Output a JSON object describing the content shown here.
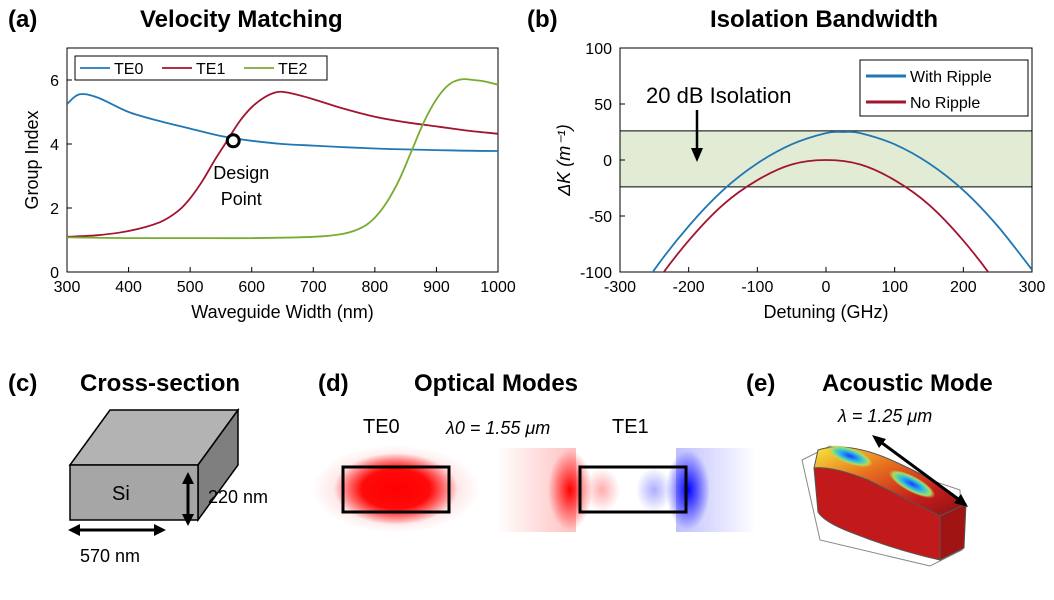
{
  "panels": {
    "a": {
      "label": "(a)",
      "title": "Velocity Matching"
    },
    "b": {
      "label": "(b)",
      "title": "Isolation Bandwidth"
    },
    "c": {
      "label": "(c)",
      "title": "Cross-section",
      "material": "Si",
      "height_label": "220 nm",
      "width_label": "570 nm"
    },
    "d": {
      "label": "(d)",
      "title": "Optical Modes",
      "mode_left": "TE0",
      "mode_right": "TE1",
      "wavelength_label": "λ0 = 1.55 μm"
    },
    "e": {
      "label": "(e)",
      "title": "Acoustic Mode",
      "wavelength_label": "λ = 1.25 μm"
    }
  },
  "chart_data": [
    {
      "type": "line",
      "title": "Velocity Matching",
      "xlabel": "Waveguide Width (nm)",
      "ylabel": "Group Index",
      "xlim": [
        300,
        1000
      ],
      "ylim": [
        0,
        7
      ],
      "xticks": [
        300,
        400,
        500,
        600,
        700,
        800,
        900,
        1000
      ],
      "yticks": [
        0,
        2,
        4,
        6
      ],
      "legend": "top-left",
      "annotation": {
        "text": "Design Point",
        "x": 570,
        "y": 4.1
      },
      "series": [
        {
          "name": "TE0",
          "color": "#1f77b4",
          "x": [
            300,
            320,
            350,
            400,
            450,
            500,
            550,
            600,
            650,
            700,
            750,
            800,
            850,
            900,
            950,
            1000
          ],
          "y": [
            5.25,
            5.55,
            5.45,
            5.0,
            4.72,
            4.48,
            4.25,
            4.1,
            4.0,
            3.95,
            3.9,
            3.86,
            3.83,
            3.81,
            3.79,
            3.78
          ]
        },
        {
          "name": "TE1",
          "color": "#a2142f",
          "x": [
            300,
            350,
            400,
            450,
            480,
            500,
            520,
            540,
            560,
            580,
            600,
            620,
            640,
            660,
            700,
            750,
            800,
            850,
            900,
            950,
            1000
          ],
          "y": [
            1.1,
            1.15,
            1.28,
            1.55,
            1.9,
            2.3,
            2.85,
            3.5,
            4.1,
            4.7,
            5.15,
            5.45,
            5.62,
            5.6,
            5.4,
            5.1,
            4.85,
            4.68,
            4.55,
            4.42,
            4.32
          ]
        },
        {
          "name": "TE2",
          "color": "#77ac30",
          "x": [
            300,
            400,
            500,
            600,
            700,
            750,
            780,
            800,
            820,
            840,
            860,
            880,
            900,
            920,
            940,
            960,
            980,
            1000
          ],
          "y": [
            1.08,
            1.06,
            1.06,
            1.06,
            1.1,
            1.2,
            1.4,
            1.7,
            2.2,
            2.9,
            3.8,
            4.7,
            5.4,
            5.85,
            6.02,
            6.0,
            5.95,
            5.85
          ]
        }
      ]
    },
    {
      "type": "line",
      "title": "Isolation Bandwidth",
      "xlabel": "Detuning (GHz)",
      "ylabel": "ΔK (m⁻¹)",
      "xlim": [
        -300,
        300
      ],
      "ylim": [
        -100,
        100
      ],
      "xticks": [
        -300,
        -200,
        -100,
        0,
        100,
        200,
        300
      ],
      "yticks": [
        -100,
        -50,
        0,
        50,
        100
      ],
      "legend": "top-right",
      "band": {
        "label": "20 dB Isolation",
        "y": [
          -24,
          26
        ]
      },
      "series": [
        {
          "name": "With Ripple",
          "color": "#1f77b4",
          "x": [
            -300,
            -250,
            -200,
            -150,
            -100,
            -50,
            0,
            25,
            50,
            100,
            150,
            200,
            250,
            300
          ],
          "y": [
            -145,
            -98,
            -59,
            -27,
            -3,
            14,
            24,
            25,
            24,
            14,
            -3,
            -27,
            -59,
            -98
          ]
        },
        {
          "name": "No Ripple",
          "color": "#a2142f",
          "x": [
            -300,
            -250,
            -200,
            -150,
            -100,
            -50,
            0,
            50,
            100,
            150,
            200,
            250,
            300
          ],
          "y": [
            -162,
            -112,
            -72,
            -40,
            -18,
            -4,
            0,
            -4,
            -18,
            -40,
            -72,
            -112,
            -162
          ]
        }
      ]
    }
  ]
}
